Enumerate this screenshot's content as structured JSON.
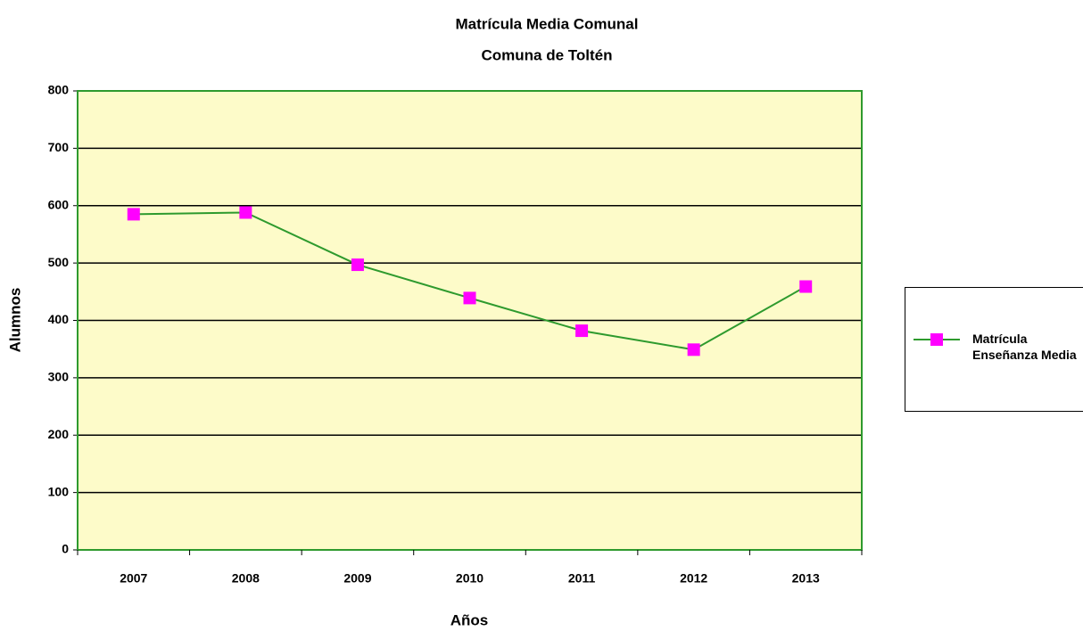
{
  "chart_data": {
    "type": "line",
    "title": "Matrícula Media Comunal",
    "subtitle": "Comuna de Toltén",
    "x_label": "Años",
    "y_label": "Alumnos",
    "categories": [
      "2007",
      "2008",
      "2009",
      "2010",
      "2011",
      "2012",
      "2013"
    ],
    "series": [
      {
        "name": "Matrícula Enseñanza Media",
        "color": "#2e9a2e",
        "marker_color": "#ff00ff",
        "values": [
          585,
          588,
          497,
          439,
          382,
          349,
          459
        ]
      }
    ],
    "ylim": [
      0,
      800
    ],
    "yticks": [
      0,
      100,
      200,
      300,
      400,
      500,
      600,
      700,
      800
    ],
    "grid": true,
    "plot_background": "#fdfbc9",
    "legend": "right"
  }
}
